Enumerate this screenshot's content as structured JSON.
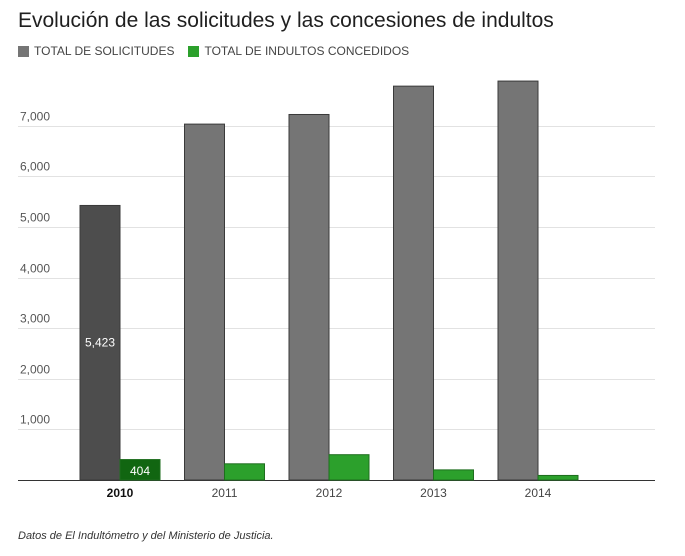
{
  "title": "Evolución de las solicitudes y las concesiones de indultos",
  "source_note": "Datos de El Indultómetro y del Ministerio de Justicia.",
  "colors": {
    "solicitudes": "#757575",
    "solicitudes_highlight": "#4d4d4d",
    "concedidos": "#2ca02c",
    "concedidos_highlight": "#116611"
  },
  "chart_data": {
    "type": "bar",
    "categories": [
      "2010",
      "2011",
      "2012",
      "2013",
      "2014"
    ],
    "series": [
      {
        "name": "TOTAL DE SOLICITUDES",
        "values": [
          5423,
          7030,
          7220,
          7780,
          7880
        ]
      },
      {
        "name": "TOTAL DE INDULTOS CONCEDIDOS",
        "values": [
          404,
          320,
          500,
          200,
          90
        ]
      }
    ],
    "highlighted_category": "2010",
    "data_labels": [
      {
        "category": "2010",
        "series": "TOTAL DE SOLICITUDES",
        "text": "5,423"
      },
      {
        "category": "2010",
        "series": "TOTAL DE INDULTOS CONCEDIDOS",
        "text": "404"
      }
    ],
    "yticks": [
      "1,000",
      "2,000",
      "3,000",
      "4,000",
      "5,000",
      "6,000",
      "7,000"
    ],
    "ytick_values": [
      1000,
      2000,
      3000,
      4000,
      5000,
      6000,
      7000
    ],
    "ylim": [
      0,
      8000
    ],
    "grid": true,
    "legend": "top-left"
  }
}
